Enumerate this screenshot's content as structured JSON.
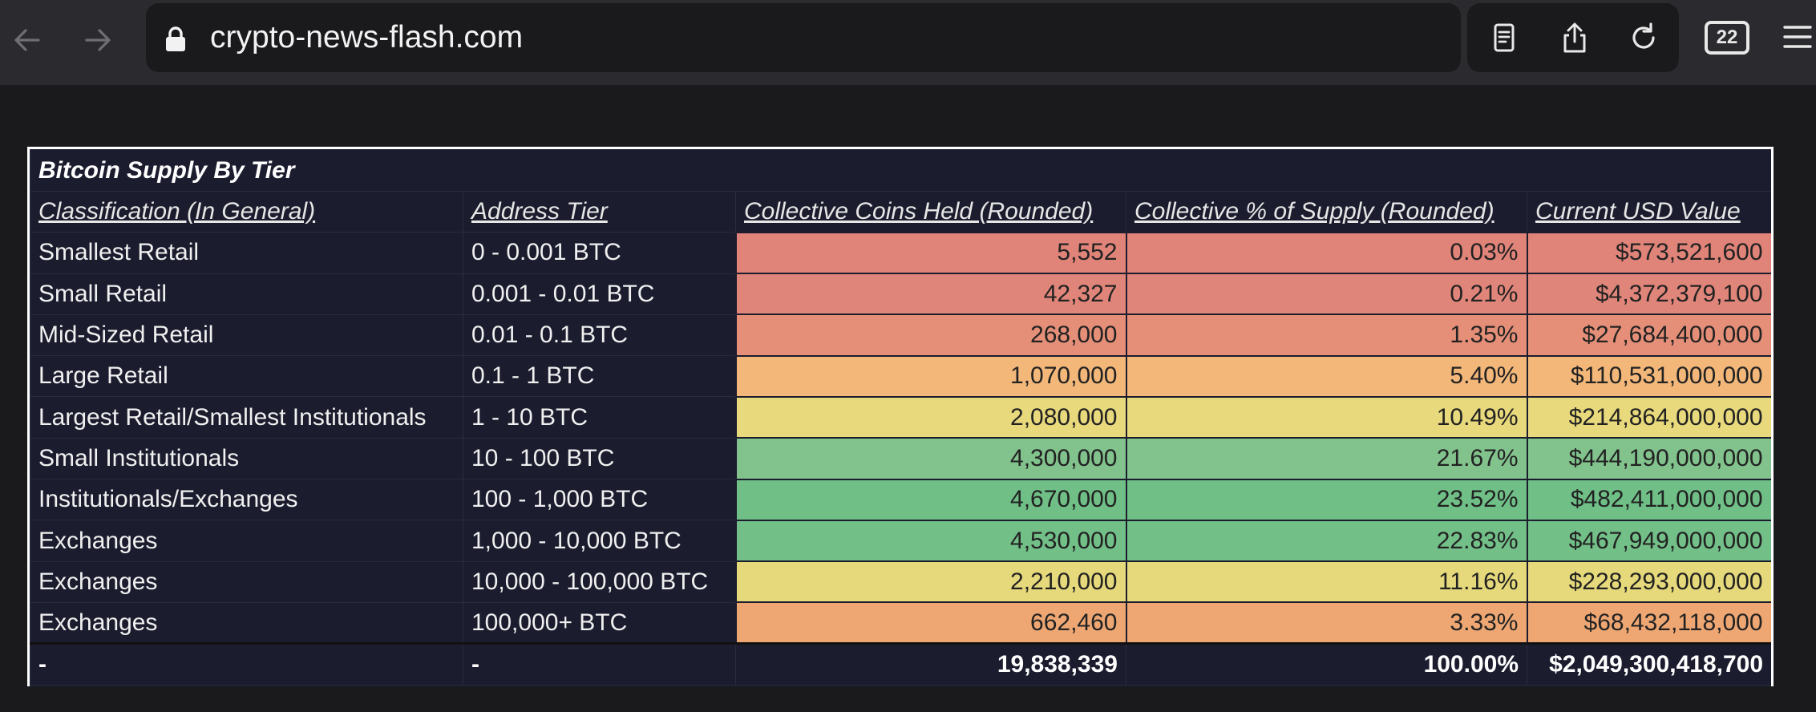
{
  "browser": {
    "url": "crypto-news-flash.com",
    "tab_count": "22",
    "icons": [
      "back-arrow-icon",
      "forward-arrow-icon",
      "lock-icon",
      "reader-icon",
      "share-icon",
      "reload-icon",
      "tabs-icon",
      "menu-icon"
    ]
  },
  "table": {
    "title": "Bitcoin Supply By Tier",
    "headers": [
      "Classification (In General)",
      "Address Tier",
      "Collective Coins Held (Rounded)",
      "Collective % of Supply (Rounded)",
      "Current USD Value"
    ],
    "rows": [
      {
        "classification": "Smallest Retail",
        "tier": "0 - 0.001 BTC",
        "coins": "5,552",
        "pct": "0.03%",
        "usd": "$573,521,600",
        "color": "#e08378"
      },
      {
        "classification": "Small Retail",
        "tier": "0.001 - 0.01 BTC",
        "coins": "42,327",
        "pct": "0.21%",
        "usd": "$4,372,379,100",
        "color": "#e08579"
      },
      {
        "classification": "Mid-Sized Retail",
        "tier": "0.01 - 0.1 BTC",
        "coins": "268,000",
        "pct": "1.35%",
        "usd": "$27,684,400,000",
        "color": "#e58f78"
      },
      {
        "classification": "Large Retail",
        "tier": "0.1 - 1 BTC",
        "coins": "1,070,000",
        "pct": "5.40%",
        "usd": "$110,531,000,000",
        "color": "#f2b779"
      },
      {
        "classification": "Largest Retail/Smallest Institutionals",
        "tier": "1 - 10 BTC",
        "coins": "2,080,000",
        "pct": "10.49%",
        "usd": "$214,864,000,000",
        "color": "#e8d97c"
      },
      {
        "classification": "Small Institutionals",
        "tier": "10 - 100 BTC",
        "coins": "4,300,000",
        "pct": "21.67%",
        "usd": "$444,190,000,000",
        "color": "#82c28d"
      },
      {
        "classification": "Institutionals/Exchanges",
        "tier": "100 - 1,000 BTC",
        "coins": "4,670,000",
        "pct": "23.52%",
        "usd": "$482,411,000,000",
        "color": "#6fbf87"
      },
      {
        "classification": "Exchanges",
        "tier": "1,000 - 10,000 BTC",
        "coins": "4,530,000",
        "pct": "22.83%",
        "usd": "$467,949,000,000",
        "color": "#72bf88"
      },
      {
        "classification": "Exchanges",
        "tier": "10,000 - 100,000 BTC",
        "coins": "2,210,000",
        "pct": "11.16%",
        "usd": "$228,293,000,000",
        "color": "#e6d97b"
      },
      {
        "classification": "Exchanges",
        "tier": "100,000+ BTC",
        "coins": "662,460",
        "pct": "3.33%",
        "usd": "$68,432,118,000",
        "color": "#eea773"
      }
    ],
    "total": {
      "classification": "-",
      "tier": "-",
      "coins": "19,838,339",
      "pct": "100.00%",
      "usd": "$2,049,300,418,700"
    }
  }
}
